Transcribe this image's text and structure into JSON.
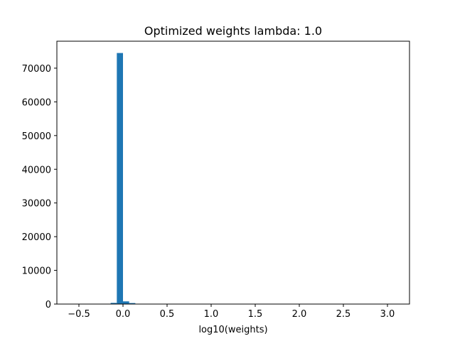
{
  "chart_data": {
    "type": "bar",
    "title": "Optimized weights lambda: 1.0",
    "xlabel": "log10(weights)",
    "ylabel": "",
    "xlim": [
      -0.75,
      3.25
    ],
    "ylim": [
      0,
      78000
    ],
    "grid": false,
    "legend": "none",
    "bar_color": "#1f77b4",
    "bin_width": 0.07,
    "bins": [
      {
        "x": -0.105,
        "value": 350
      },
      {
        "x": -0.035,
        "value": 74500
      },
      {
        "x": 0.035,
        "value": 800
      },
      {
        "x": 0.105,
        "value": 300
      },
      {
        "x": 0.175,
        "value": 60
      },
      {
        "x": 0.245,
        "value": 20
      }
    ],
    "xticks": [
      {
        "value": -0.5,
        "label": "−0.5"
      },
      {
        "value": 0.0,
        "label": "0.0"
      },
      {
        "value": 0.5,
        "label": "0.5"
      },
      {
        "value": 1.0,
        "label": "1.0"
      },
      {
        "value": 1.5,
        "label": "1.5"
      },
      {
        "value": 2.0,
        "label": "2.0"
      },
      {
        "value": 2.5,
        "label": "2.5"
      },
      {
        "value": 3.0,
        "label": "3.0"
      }
    ],
    "yticks": [
      {
        "value": 0,
        "label": "0"
      },
      {
        "value": 10000,
        "label": "10000"
      },
      {
        "value": 20000,
        "label": "20000"
      },
      {
        "value": 30000,
        "label": "30000"
      },
      {
        "value": 40000,
        "label": "40000"
      },
      {
        "value": 50000,
        "label": "50000"
      },
      {
        "value": 60000,
        "label": "60000"
      },
      {
        "value": 70000,
        "label": "70000"
      }
    ]
  }
}
